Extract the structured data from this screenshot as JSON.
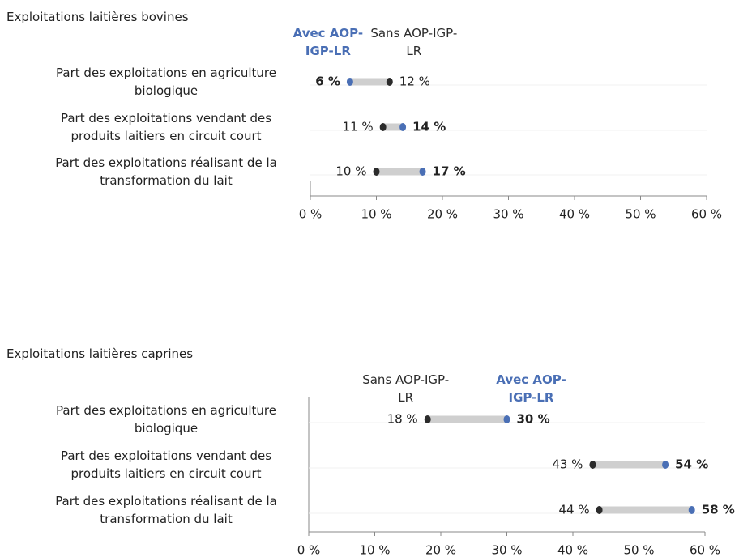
{
  "chart_data": [
    {
      "type": "dumbbell",
      "title": "Exploitations laitières bovines",
      "categories": [
        "Part des exploitations en agriculture biologique",
        "Part des exploitations vendant des produits laitiers en circuit court",
        "Part des exploitations réalisant de la transformation du lait"
      ],
      "series": [
        {
          "name": "Avec AOP-IGP-LR",
          "color": "#4a6fb5",
          "values": [
            6,
            14,
            17
          ],
          "value_labels": [
            "6 %",
            "14 %",
            "17 %"
          ]
        },
        {
          "name": "Sans AOP-IGP-LR",
          "color": "#2b2b2b",
          "values": [
            12,
            11,
            10
          ],
          "value_labels": [
            "12 %",
            "11 %",
            "10 %"
          ]
        }
      ],
      "xlim": [
        0,
        60
      ],
      "xticks": [
        {
          "value": 0,
          "label": "0 %"
        },
        {
          "value": 10,
          "label": "10 %"
        },
        {
          "value": 20,
          "label": "20 %"
        },
        {
          "value": 30,
          "label": "30 %"
        },
        {
          "value": 40,
          "label": "40 %"
        },
        {
          "value": 50,
          "label": "50 %"
        },
        {
          "value": 60,
          "label": "60 %"
        }
      ]
    },
    {
      "type": "dumbbell",
      "title": "Exploitations laitières caprines",
      "categories": [
        "Part des exploitations en agriculture biologique",
        "Part des exploitations vendant des produits laitiers en circuit court",
        "Part des exploitations réalisant de la transformation du lait"
      ],
      "series": [
        {
          "name": "Sans AOP-IGP-LR",
          "color": "#2b2b2b",
          "values": [
            18,
            43,
            44
          ],
          "value_labels": [
            "18 %",
            "43 %",
            "44 %"
          ]
        },
        {
          "name": "Avec AOP-IGP-LR",
          "color": "#4a6fb5",
          "values": [
            30,
            54,
            58
          ],
          "value_labels": [
            "30 %",
            "54 %",
            "58 %"
          ]
        }
      ],
      "xlim": [
        0,
        60
      ],
      "xticks": [
        {
          "value": 0,
          "label": "0 %"
        },
        {
          "value": 10,
          "label": "10 %"
        },
        {
          "value": 20,
          "label": "20 %"
        },
        {
          "value": 30,
          "label": "30 %"
        },
        {
          "value": 40,
          "label": "40 %"
        },
        {
          "value": 50,
          "label": "50 %"
        },
        {
          "value": 60,
          "label": "60 %"
        }
      ]
    }
  ]
}
